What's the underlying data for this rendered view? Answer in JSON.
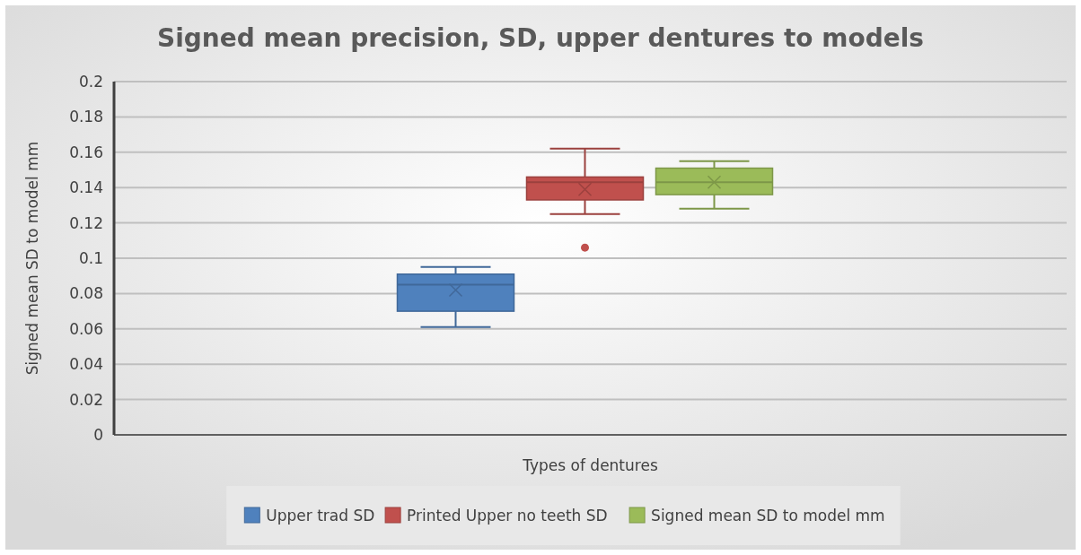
{
  "chart_data": {
    "type": "box",
    "title": "Signed mean precision, SD, upper dentures to models",
    "xlabel": "Types of dentures",
    "ylabel": "Signed mean SD to model mm",
    "categories": [
      null
    ],
    "ylim": [
      0,
      0.2
    ],
    "yticks": [
      0,
      0.02,
      0.04,
      0.06,
      0.08,
      0.1,
      0.12,
      0.14,
      0.16,
      0.18,
      0.2
    ],
    "grid": "y",
    "legend": "bottom",
    "series": [
      {
        "name": "Upper trad SD",
        "color": "#4f81bd",
        "boxes": [
          {
            "low": 0.061,
            "q1": 0.07,
            "median": 0.085,
            "q3": 0.091,
            "high": 0.095,
            "mean": 0.082
          }
        ]
      },
      {
        "name": "Printed Upper no teeth SD",
        "color": "#c0504d",
        "boxes": [
          {
            "low": 0.125,
            "q1": 0.133,
            "median": 0.143,
            "q3": 0.146,
            "high": 0.162,
            "mean": 0.139,
            "outliers": [
              0.106
            ]
          }
        ]
      },
      {
        "name": "Signed mean SD to model mm",
        "color": "#9bbb59",
        "boxes": [
          {
            "low": 0.128,
            "q1": 0.136,
            "median": 0.143,
            "q3": 0.151,
            "high": 0.155,
            "mean": 0.143
          }
        ]
      }
    ]
  }
}
